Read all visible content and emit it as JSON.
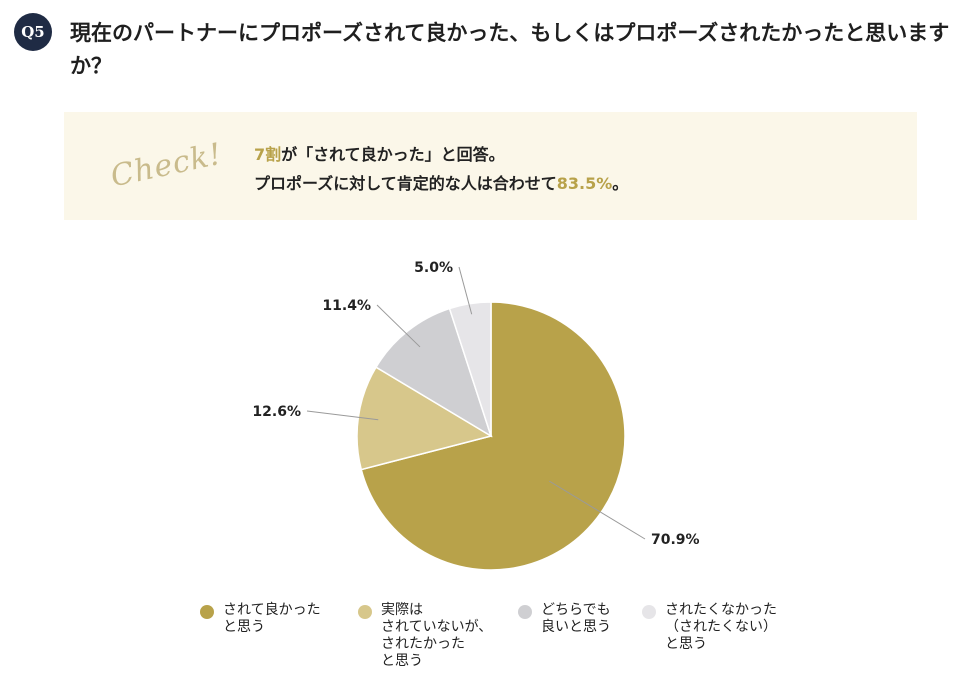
{
  "question": {
    "badge": "Q5",
    "text": "現在のパートナーにプロポーズされて良かった、もしくはプロポーズされたかったと思いますか？"
  },
  "check": {
    "logo": "Check!",
    "line1_highlight": "7割",
    "line1_rest": "が「されて良かった」と回答。",
    "line2_text": "プロポーズに対して肯定的な人は合わせて",
    "line2_highlight": "83.5%",
    "line2_end": "。"
  },
  "colors": {
    "accent": "#b8a24a",
    "badge": "#1f2b44",
    "check_bg": "#fbf7e9"
  },
  "chart_data": {
    "type": "pie",
    "start_angle_deg": 0,
    "direction": "clockwise",
    "slices": [
      {
        "label": "されて良かったと思う",
        "value": 70.9,
        "display": "70.9%",
        "color": "#b8a24a"
      },
      {
        "label": "実際はされていないが、されたかったと思う",
        "value": 12.6,
        "display": "12.6%",
        "color": "#d7c78b"
      },
      {
        "label": "どちらでも良いと思う",
        "value": 11.4,
        "display": "11.4%",
        "color": "#cfcfd2"
      },
      {
        "label": "されたくなかった（されたくない）と思う",
        "value": 5.0,
        "display": "5.0%",
        "color": "#e6e5e8"
      }
    ]
  },
  "legend": [
    {
      "text": "されて良かった\nと思う",
      "color": "#b8a24a"
    },
    {
      "text": "実際は\nされていないが、\nされたかった\nと思う",
      "color": "#d7c78b"
    },
    {
      "text": "どちらでも\n良いと思う",
      "color": "#cfcfd2"
    },
    {
      "text": "されたくなかった\n（されたくない）\nと思う",
      "color": "#e6e5e8"
    }
  ]
}
